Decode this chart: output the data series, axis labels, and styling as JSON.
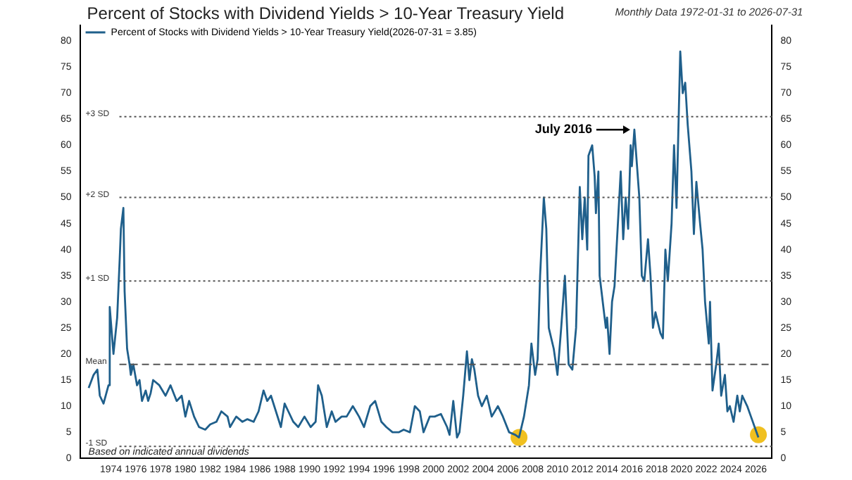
{
  "chart_data": {
    "type": "line",
    "title": "Percent of Stocks with Dividend Yields > 10-Year Treasury Yield",
    "subtitle": "Monthly Data 1972-01-31 to 2026-07-31",
    "series": [
      {
        "name": "Percent of Stocks with Dividend Yields > 10-Year Treasury Yield(2026-07-31 = 3.85)",
        "color": "#1f5f8b",
        "x": [
          1972.2,
          1972.6,
          1972.9,
          1973.1,
          1973.4,
          1973.8,
          1973.9,
          1974.2,
          1974.5,
          1974.7,
          1974.8,
          1975.0,
          1975.1,
          1975.3,
          1975.5,
          1975.6,
          1975.8,
          1976.1,
          1976.3,
          1976.5,
          1976.8,
          1977.0,
          1977.2,
          1977.4,
          1977.9,
          1978.4,
          1978.8,
          1979.3,
          1979.7,
          1980.0,
          1980.3,
          1980.7,
          1981.1,
          1981.6,
          1982.0,
          1982.5,
          1982.9,
          1983.4,
          1983.6,
          1984.1,
          1984.6,
          1985.0,
          1985.5,
          1985.9,
          1986.3,
          1986.6,
          1986.9,
          1987.3,
          1987.7,
          1988.0,
          1988.3,
          1988.7,
          1989.1,
          1989.6,
          1990.1,
          1990.5,
          1990.7,
          1991.0,
          1991.2,
          1991.4,
          1991.8,
          1992.1,
          1992.6,
          1993.0,
          1993.5,
          1994.0,
          1994.4,
          1994.9,
          1995.3,
          1995.8,
          1996.2,
          1996.7,
          1997.2,
          1997.6,
          1998.1,
          1998.5,
          1998.9,
          1999.2,
          1999.7,
          2000.1,
          2000.6,
          2001.1,
          2001.3,
          2001.6,
          2001.9,
          2002.1,
          2002.4,
          2002.7,
          2002.9,
          2003.1,
          2003.3,
          2003.6,
          2003.9,
          2004.3,
          2004.7,
          2005.2,
          2005.6,
          2006.1,
          2006.6,
          2006.9,
          2007.3,
          2007.7,
          2007.9,
          2008.2,
          2008.4,
          2008.6,
          2008.9,
          2009.1,
          2009.3,
          2009.7,
          2010.0,
          2010.3,
          2010.6,
          2010.9,
          2011.2,
          2011.5,
          2011.8,
          2012.0,
          2012.2,
          2012.4,
          2012.5,
          2012.8,
          2013.0,
          2013.1,
          2013.3,
          2013.4,
          2013.7,
          2013.9,
          2014.0,
          2014.2,
          2014.4,
          2014.6,
          2015.1,
          2015.3,
          2015.5,
          2015.7,
          2015.9,
          2016.0,
          2016.2,
          2016.6,
          2016.8,
          2017.0,
          2017.3,
          2017.5,
          2017.7,
          2017.9,
          2018.3,
          2018.5,
          2018.7,
          2018.9,
          2019.2,
          2019.4,
          2019.6,
          2019.9,
          2020.1,
          2020.3,
          2020.5,
          2020.8,
          2021.0,
          2021.2,
          2021.5,
          2021.7,
          2021.9,
          2022.2,
          2022.3,
          2022.5,
          2022.8,
          2023.0,
          2023.2,
          2023.5,
          2023.7,
          2023.9,
          2024.2,
          2024.5,
          2024.7,
          2024.9,
          2025.3,
          2025.6,
          2025.9,
          2026.2
        ],
        "values": [
          13.5,
          16,
          17,
          12,
          10.5,
          14,
          29,
          20,
          27,
          38,
          44,
          48,
          32,
          21,
          18,
          16,
          18,
          14,
          15,
          11,
          13,
          11,
          12.5,
          15,
          14,
          12,
          14,
          11,
          12,
          8,
          11,
          8,
          6,
          5.5,
          6.5,
          7,
          9,
          8,
          6,
          8,
          7,
          7.5,
          7,
          9,
          13,
          11,
          12,
          9,
          6,
          10.5,
          9,
          7,
          6,
          8,
          6,
          7,
          14,
          12,
          9,
          6,
          9,
          7,
          8,
          8,
          10,
          8,
          6,
          10,
          11,
          7,
          6,
          5,
          5,
          5.5,
          5,
          10,
          9,
          5,
          8,
          8,
          8.5,
          6,
          4.5,
          11,
          4,
          5,
          12,
          20.5,
          15,
          19,
          17,
          12,
          10,
          12,
          8,
          10,
          8,
          5,
          4.5,
          4,
          8,
          14,
          22,
          16,
          19,
          35,
          50,
          44,
          25,
          21,
          16,
          25,
          35,
          18,
          17,
          25,
          52,
          42,
          50,
          40,
          58,
          60,
          54,
          47,
          55,
          35,
          29,
          25,
          27,
          20,
          30,
          33,
          55,
          42,
          50,
          44,
          60,
          56,
          63,
          50,
          35,
          34,
          42,
          35,
          25,
          28,
          24,
          23,
          40,
          34,
          45,
          60,
          48,
          78,
          70,
          72,
          64,
          55,
          43,
          53,
          45,
          40,
          30,
          22,
          30,
          13,
          18,
          22,
          12,
          16,
          9,
          10,
          7,
          12,
          9,
          12,
          10,
          8,
          6,
          4
        ]
      },
      {
        "type": "scatter",
        "marker": "circle",
        "color": "#f0c020",
        "x": [
          2006.9,
          2026.2
        ],
        "values": [
          4,
          4.5
        ]
      }
    ],
    "xlim": [
      1971.5,
      2027.3
    ],
    "xticks": [
      1974,
      1976,
      1978,
      1980,
      1982,
      1984,
      1986,
      1988,
      1990,
      1992,
      1994,
      1996,
      1998,
      2000,
      2002,
      2004,
      2006,
      2008,
      2010,
      2012,
      2014,
      2016,
      2018,
      2020,
      2022,
      2024,
      2026
    ],
    "ylim": [
      0,
      83
    ],
    "yticks": [
      0,
      5,
      10,
      15,
      20,
      25,
      30,
      35,
      40,
      45,
      50,
      55,
      60,
      65,
      70,
      75,
      80
    ],
    "y2lim": [
      0,
      83
    ],
    "y2ticks": [
      0,
      5,
      10,
      15,
      20,
      25,
      30,
      35,
      40,
      45,
      50,
      55,
      60,
      65,
      70,
      75,
      80
    ],
    "ref_lines": [
      {
        "axis": "y",
        "value": 65.5,
        "label": "+3 SD",
        "color": "#555555",
        "line_style": "dotted"
      },
      {
        "axis": "y",
        "value": 50,
        "label": "+2 SD",
        "color": "#555555",
        "line_style": "dotted"
      },
      {
        "axis": "y",
        "value": 34,
        "label": "+1 SD",
        "color": "#555555",
        "line_style": "dotted"
      },
      {
        "axis": "y",
        "value": 18,
        "label": "Mean",
        "color": "#555555",
        "line_style": "dashed"
      },
      {
        "axis": "y",
        "value": 2.3,
        "label": "-1 SD",
        "color": "#555555",
        "line_style": "dotted"
      }
    ],
    "annotations": [
      "Based on indicated annual dividends",
      {
        "text": "July 2016",
        "x": 2016.2,
        "y": 63
      }
    ],
    "legend": "top left",
    "grid": false,
    "marker": "none",
    "line_style": "solid"
  }
}
